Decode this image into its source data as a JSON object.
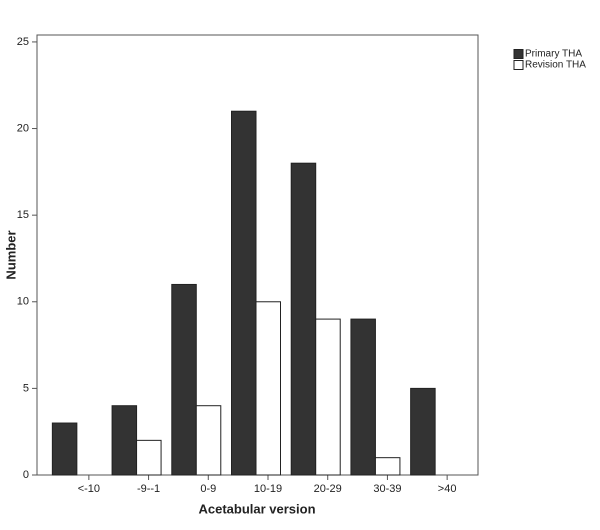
{
  "chart_data": {
    "type": "bar",
    "x_label": "Acetabular version",
    "y_label": "Number",
    "categories": [
      "<-10",
      "-9--1",
      "0-9",
      "10-19",
      "20-29",
      "30-39",
      ">40"
    ],
    "series": [
      {
        "name": "Primary THA",
        "color": "#333333",
        "values": [
          3,
          4,
          11,
          21,
          18,
          9,
          5
        ]
      },
      {
        "name": "Revision THA",
        "color": "#ffffff",
        "values": [
          0,
          2,
          4,
          10,
          9,
          1,
          0
        ]
      }
    ],
    "ylim": [
      0,
      25.4
    ],
    "yticks": [
      0,
      5,
      10,
      15,
      20,
      25
    ],
    "grid": false,
    "legend": "top-right"
  }
}
